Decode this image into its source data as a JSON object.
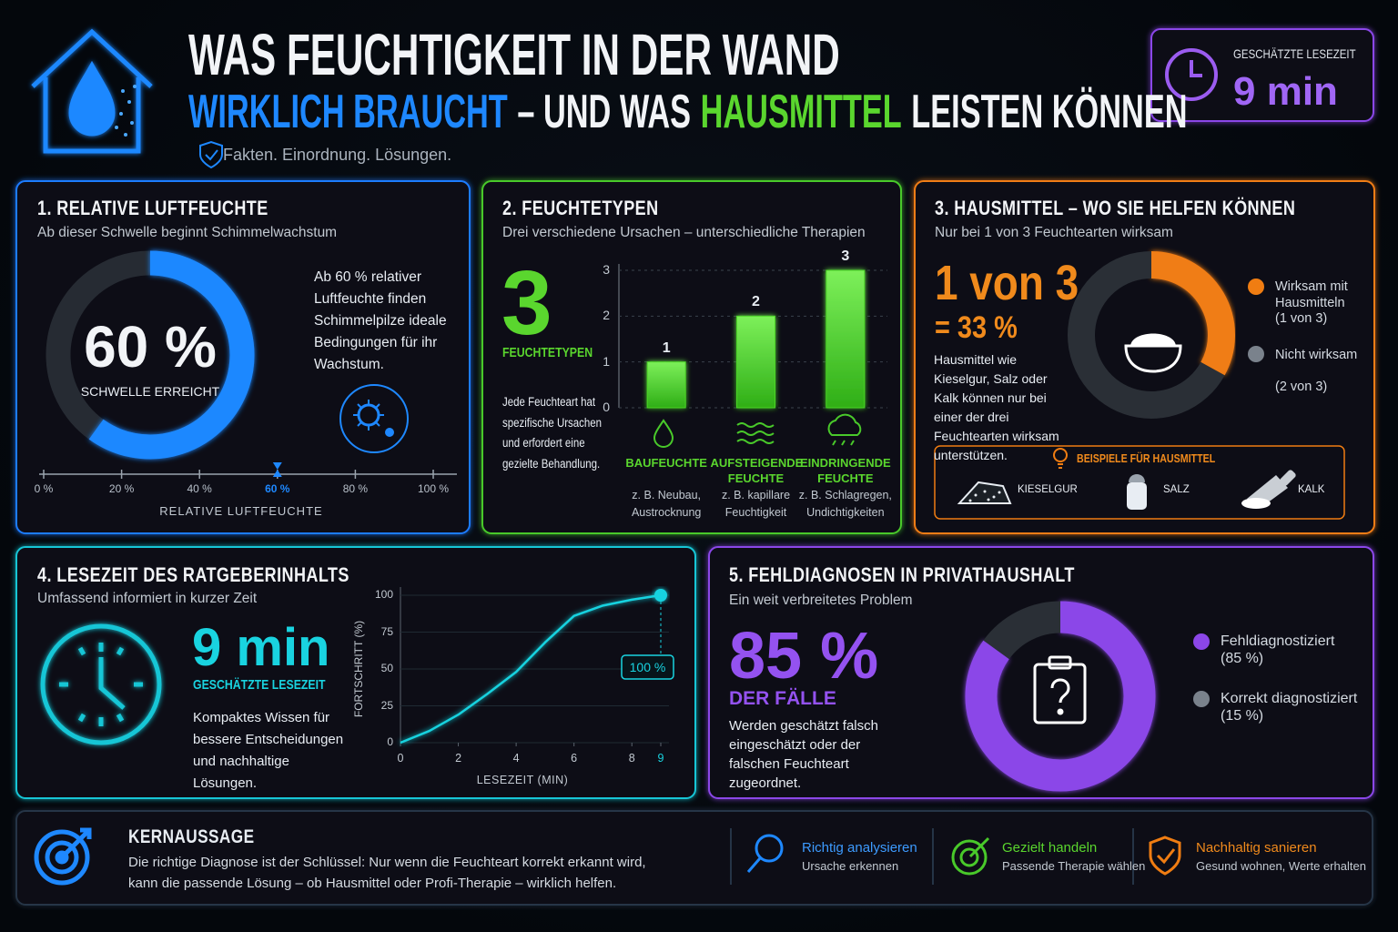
{
  "header": {
    "title_line1": "WAS FEUCHTIGKEIT IN DER WAND",
    "title_line2": [
      "WIRKLICH BRAUCHT",
      "– UND WAS",
      "HAUSMITTEL",
      "LEISTEN KÖNNEN"
    ],
    "tagline": "Fakten. Einordnung. Lösungen.",
    "reading_label": "GESCHÄTZTE LESEZEIT",
    "reading_value": "9 min"
  },
  "chart_data": [
    {
      "type": "gauge",
      "title": "1. RELATIVE LUFTFEUCHTE",
      "subtitle": "Ab dieser Schwelle beginnt Schimmelwachstum",
      "value": 60,
      "value_label": "60 %",
      "caption": "SCHWELLE ERREICHT",
      "description": "Ab 60 % relativer Luftfeuchte finden Schimmelpilze ideale Bedingungen für ihr Wachstum.",
      "xlim": [
        0,
        100
      ],
      "xticks": [
        {
          "value": 0,
          "label": "0 %"
        },
        {
          "value": 20,
          "label": "20 %"
        },
        {
          "value": 40,
          "label": "40 %"
        },
        {
          "value": 60,
          "label": "60 %"
        },
        {
          "value": 80,
          "label": "80 %"
        },
        {
          "value": 100,
          "label": "100 %"
        }
      ],
      "xlabel": "RELATIVE LUFTFEUCHTE",
      "color": "#1e88ff"
    },
    {
      "type": "bar",
      "title": "2. FEUCHTETYPEN",
      "subtitle": "Drei verschiedene Ursachen – unterschiedliche Therapien",
      "total": 3,
      "total_label": "FEUCHTETYPEN",
      "description": "Jede Feuchteart hat spezifische Ursachen und erfordert eine gezielte Behandlung.",
      "categories": [
        "BAUFEUCHTE",
        "AUFSTEIGENDE FEUCHTE",
        "EINDRINGENDE FEUCHTE"
      ],
      "category_notes": [
        "z. B. Neubau, Austrocknung",
        "z. B. kapillare Feuchtigkeit",
        "z. B. Schlagregen, Undichtigkeiten"
      ],
      "values": [
        1,
        2,
        3
      ],
      "ylim": [
        0,
        3
      ],
      "yticks": [
        0,
        1,
        2,
        3
      ],
      "grid": true,
      "color": "#4cd626"
    },
    {
      "type": "donut",
      "title": "3. HAUSMITTEL – WO SIE HELFEN KÖNNEN",
      "subtitle": "Nur bei 1 von 3 Feuchtearten wirksam",
      "headline": "1 von 3",
      "headline2": "= 33 %",
      "description": "Hausmittel wie Kieselgur, Salz oder Kalk können nur bei einer der drei Feuchtearten wirksam unterstützen.",
      "categories": [
        "Wirksam mit Hausmitteln",
        "Nicht wirksam"
      ],
      "value_labels": [
        "(1 von 3)",
        "(2 von 3)"
      ],
      "values": [
        33,
        67
      ],
      "colors": [
        "#f07d12",
        "#2a2f36"
      ],
      "examples_title": "BEISPIELE FÜR HAUSMITTEL",
      "examples": [
        "KIESELGUR",
        "SALZ",
        "KALK"
      ]
    },
    {
      "type": "line",
      "title": "4. LESEZEIT DES RATGEBERINHALTS",
      "subtitle": "Umfassend informiert in kurzer Zeit",
      "headline": "9 min",
      "headline_label": "GESCHÄTZTE LESEZEIT",
      "description": "Kompaktes Wissen für bessere Entscheidungen und nachhaltige Lösungen.",
      "x": [
        0,
        1,
        2,
        3,
        4,
        5,
        6,
        7,
        8,
        9
      ],
      "values": [
        0,
        8,
        19,
        33,
        48,
        68,
        86,
        93,
        97,
        100
      ],
      "value_labels": [
        null,
        null,
        null,
        null,
        null,
        null,
        null,
        null,
        null,
        "100 %"
      ],
      "xlim": [
        0,
        9
      ],
      "xticks": [
        0,
        2,
        4,
        6,
        8,
        9
      ],
      "ylim": [
        0,
        100
      ],
      "yticks": [
        0,
        25,
        50,
        75,
        100
      ],
      "xlabel": "LESEZEIT (MIN)",
      "ylabel": "FORTSCHRITT (%)",
      "color": "#19d3e0"
    },
    {
      "type": "donut",
      "title": "5. FEHLDIAGNOSEN IN PRIVATHAUSHALT",
      "subtitle": "Ein weit verbreitetes Problem",
      "headline": "85 %",
      "headline2": "DER FÄLLE",
      "description": "Werden geschätzt falsch eingeschätzt oder der falschen Feuchteart zugeordnet.",
      "categories": [
        "Fehldiagnostiziert",
        "Korrekt diagnostiziert"
      ],
      "value_labels": [
        "(85 %)",
        "(15 %)"
      ],
      "values": [
        85,
        15
      ],
      "colors": [
        "#8b46e8",
        "#2a2f36"
      ]
    }
  ],
  "footer": {
    "title": "KERNAUSSAGE",
    "text": "Die richtige Diagnose ist der Schlüssel: Nur wenn die Feuchteart korrekt erkannt wird, kann die passende Lösung – ob Hausmittel oder Profi-Therapie – wirklich helfen.",
    "items": [
      {
        "title": "Richtig analysieren",
        "text": "Ursache erkennen"
      },
      {
        "title": "Gezielt handeln",
        "text": "Passende Therapie wählen"
      },
      {
        "title": "Nachhaltig sanieren",
        "text": "Gesund wohnen, Werte erhalten"
      }
    ]
  }
}
